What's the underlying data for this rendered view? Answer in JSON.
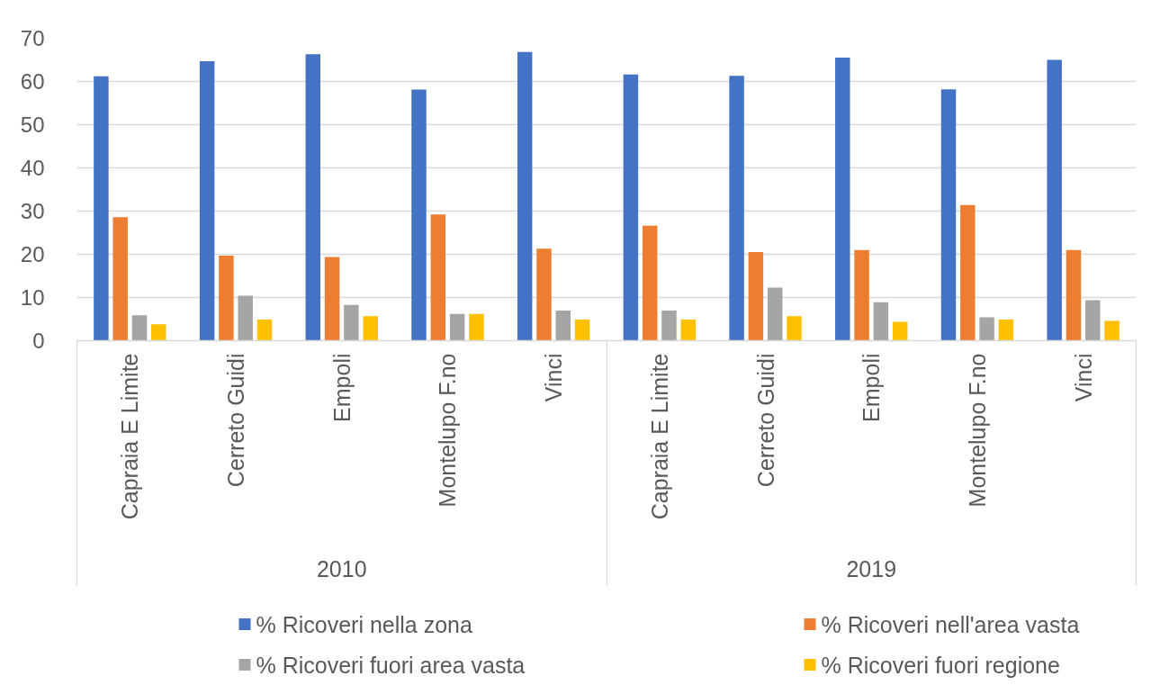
{
  "chart_data": {
    "type": "bar",
    "categories": [
      "Capraia E Limite",
      "Cerreto Guidi",
      "Empoli",
      "Montelupo F.no",
      "Vinci",
      "Capraia E Limite",
      "Cerreto Guidi",
      "Empoli",
      "Montelupo F.no",
      "Vinci"
    ],
    "series": [
      {
        "name": "% Ricoveri nella zona",
        "color": "#4472c4",
        "values": [
          61.2,
          64.7,
          66.3,
          58.1,
          66.8,
          61.6,
          61.3,
          65.5,
          58.2,
          65.0
        ]
      },
      {
        "name": "% Ricoveri nell'area vasta",
        "color": "#ed7d31",
        "values": [
          28.6,
          19.7,
          19.4,
          29.2,
          21.3,
          26.6,
          20.5,
          21.0,
          31.4,
          21.0
        ]
      },
      {
        "name": "% Ricoveri fuori area vasta",
        "color": "#a5a5a5",
        "values": [
          5.9,
          10.4,
          8.3,
          6.2,
          7.0,
          7.0,
          12.3,
          8.9,
          5.4,
          9.4
        ]
      },
      {
        "name": "% Ricoveri fuori regione",
        "color": "#ffc000",
        "values": [
          3.8,
          4.9,
          5.7,
          6.2,
          4.9,
          4.9,
          5.7,
          4.4,
          4.9,
          4.6
        ]
      }
    ],
    "annotations": [
      "2010",
      "2019"
    ],
    "ylim": [
      0,
      70
    ],
    "yticks": [
      0,
      10,
      20,
      30,
      40,
      50,
      60,
      70
    ],
    "grid": "y",
    "legend": "bottom"
  }
}
